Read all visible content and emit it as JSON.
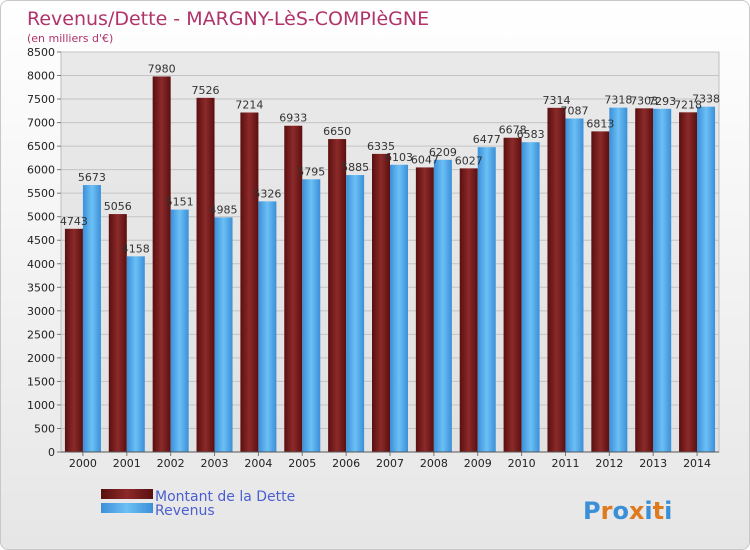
{
  "chart_data": {
    "type": "bar",
    "title": "Revenus/Dette - MARGNY-LèS-COMPIèGNE",
    "subtitle": "(en milliers d'€)",
    "categories": [
      "2000",
      "2001",
      "2002",
      "2003",
      "2004",
      "2005",
      "2006",
      "2007",
      "2008",
      "2009",
      "2010",
      "2011",
      "2012",
      "2013",
      "2014"
    ],
    "series": [
      {
        "name": "Montant de la Dette",
        "color": "#7a1e1e",
        "values": [
          4743,
          5056,
          7980,
          7526,
          7214,
          6933,
          6650,
          6335,
          6047,
          6027,
          6678,
          7314,
          6813,
          7303,
          7218
        ],
        "labels": [
          "4743",
          "5056",
          "7980",
          "7526",
          "7214",
          "6933",
          "6650",
          "6335",
          "6047",
          "6027",
          "6678",
          "7314",
          "6813",
          "7303",
          "7218"
        ]
      },
      {
        "name": "Revenus",
        "color": "#4aa3e8",
        "values": [
          5673,
          4158,
          5151,
          4985,
          5326,
          5795,
          5885,
          6103,
          6209,
          6477,
          6583,
          7087,
          7318,
          7293,
          7338
        ],
        "labels": [
          "5673",
          "4158",
          "5151",
          "4985",
          "5326",
          "5795",
          "5885",
          "6103",
          "6209",
          "6477",
          "6583",
          "7087",
          "7318",
          "7293",
          "7338"
        ]
      }
    ],
    "yticks": [
      "0",
      "500",
      "1000",
      "1500",
      "2000",
      "2500",
      "3000",
      "3500",
      "4000",
      "4500",
      "5000",
      "5500",
      "6000",
      "6500",
      "7000",
      "7500",
      "8000",
      "8500"
    ],
    "ylim": [
      0,
      8500
    ],
    "grid": true,
    "legend_position": "bottom-left"
  },
  "logo": {
    "text": "Proxiti",
    "letter_colors": [
      "#3a8fd6",
      "#e07a1f",
      "#3a8fd6",
      "#e07a1f",
      "#3a8fd6",
      "#e07a1f",
      "#3a8fd6"
    ]
  }
}
